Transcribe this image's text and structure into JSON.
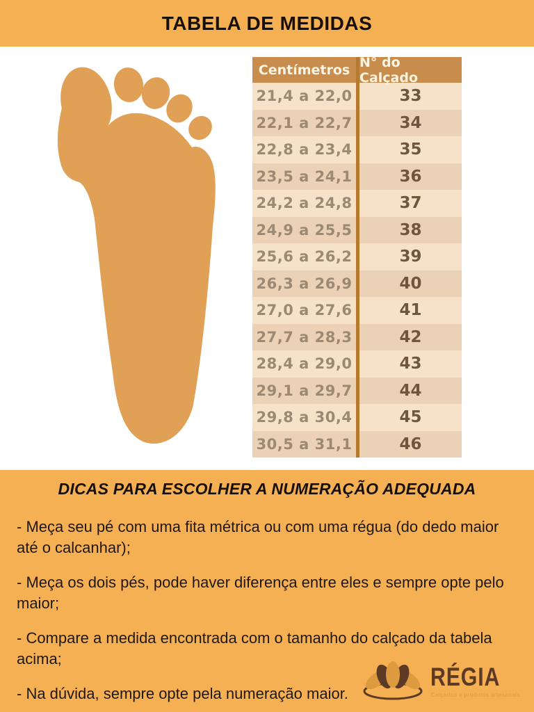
{
  "title": "TABELA DE MEDIDAS",
  "table": {
    "headers": [
      "Centímetros",
      "N° do Calçado"
    ],
    "rows": [
      [
        "21,4 a 22,0",
        "33"
      ],
      [
        "22,1 a 22,7",
        "34"
      ],
      [
        "22,8 a 23,4",
        "35"
      ],
      [
        "23,5 a 24,1",
        "36"
      ],
      [
        "24,2 a 24,8",
        "37"
      ],
      [
        "24,9 a 25,5",
        "38"
      ],
      [
        "25,6 a 26,2",
        "39"
      ],
      [
        "26,3 a 26,9",
        "40"
      ],
      [
        "27,0 a 27,6",
        "41"
      ],
      [
        "27,7 a 28,3",
        "42"
      ],
      [
        "28,4 a 29,0",
        "43"
      ],
      [
        "29,1 a 29,7",
        "44"
      ],
      [
        "29,8 a 30,4",
        "45"
      ],
      [
        "30,5 a 31,1",
        "46"
      ]
    ]
  },
  "tips": {
    "heading": "DICAS PARA ESCOLHER A NUMERAÇÃO ADEQUADA",
    "items": [
      "- Meça seu pé com uma fita métrica ou com uma régua (do dedo maior até o calcanhar);",
      "- Meça os dois pés, pode haver diferença entre eles e sempre opte pelo maior;",
      "- Compare a medida encontrada com o tamanho do calçado da tabela acima;",
      "- Na dúvida, sempre opte pela numeração maior."
    ]
  },
  "logo": {
    "name": "RÉGIA",
    "tagline": "Calçados e produtos artesanais",
    "icon": "lotus-icon"
  },
  "colors": {
    "band": "#F6B054",
    "foot": "#E0A156",
    "table_header_bg": "#C88C4D",
    "table_divider": "#B5792F",
    "row_light": "#F5E2C9",
    "row_dark": "#EBD2B6",
    "cm_text": "#9C8973",
    "size_text": "#6E573E",
    "header_text": "#FCF4E3",
    "logo_brown": "#5C3A26",
    "lotus_orange": "#DD9A3E"
  }
}
